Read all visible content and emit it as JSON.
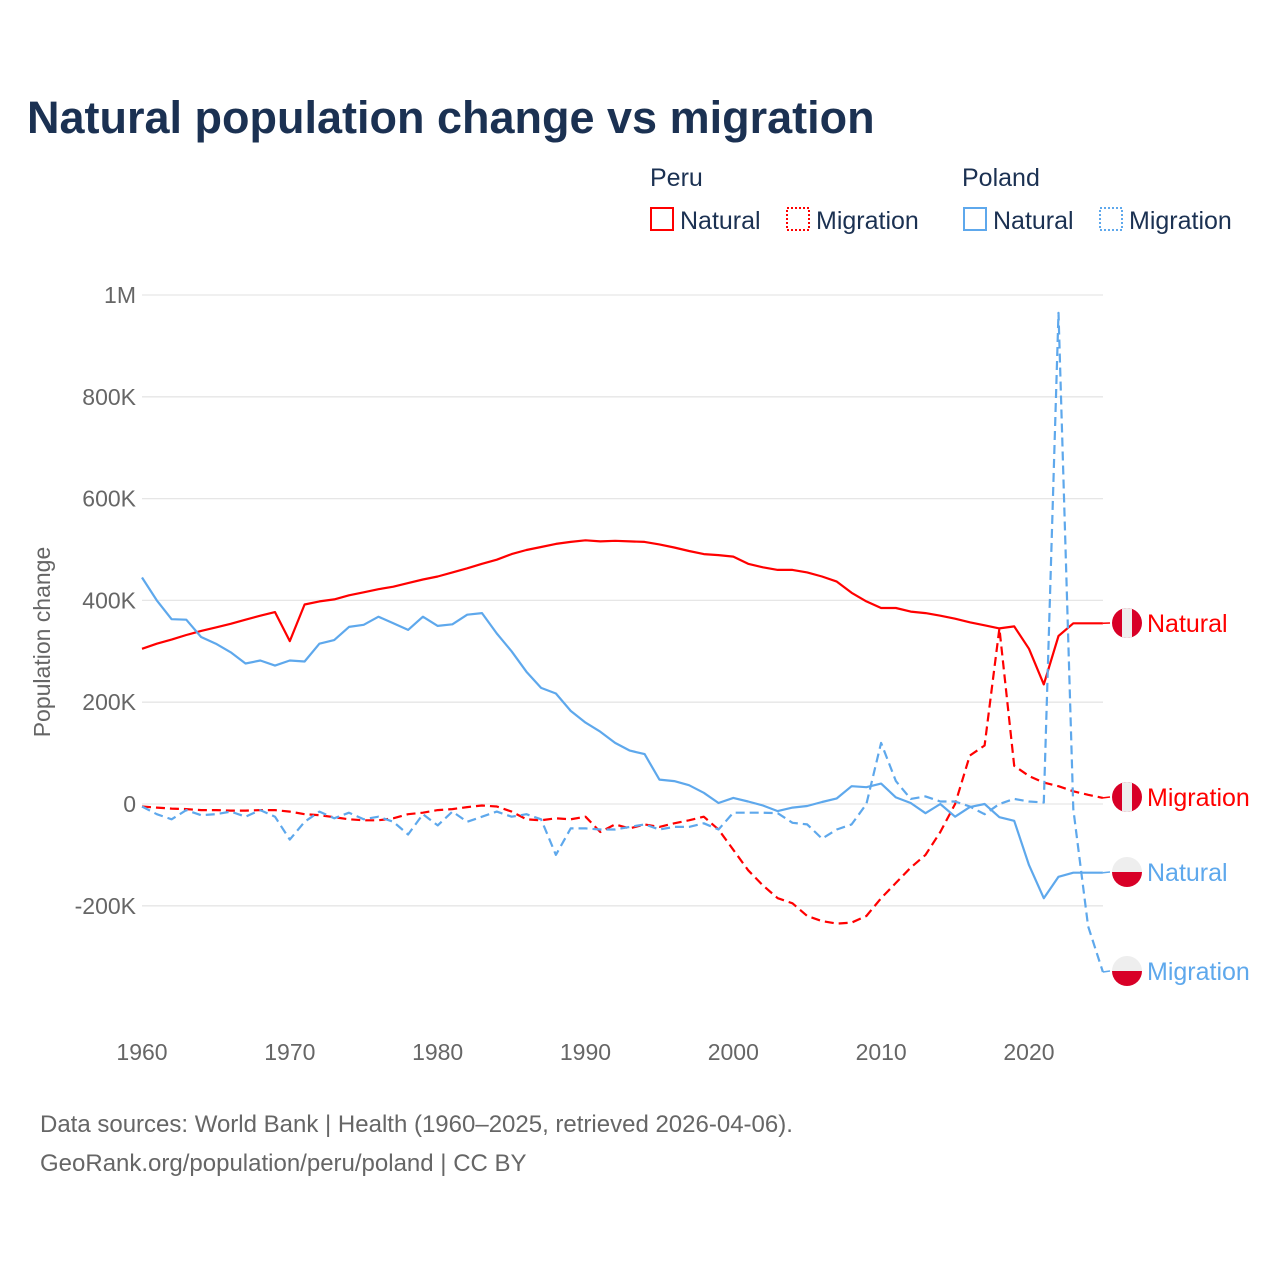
{
  "chart_data": {
    "type": "line",
    "title": "Natural population change vs migration",
    "xlabel": "",
    "ylabel": "Population change",
    "xlim": [
      1960,
      2025
    ],
    "ylim": [
      -380000,
      1000000
    ],
    "grid": true,
    "legend_placement": "top-right",
    "x_ticks": [
      1960,
      1970,
      1980,
      1990,
      2000,
      2010,
      2020
    ],
    "x_tick_labels": [
      "1960",
      "1970",
      "1980",
      "1990",
      "2000",
      "2010",
      "2020"
    ],
    "y_ticks": [
      1000000,
      800000,
      600000,
      400000,
      200000,
      0,
      -200000
    ],
    "y_tick_labels": [
      "1M",
      "800K",
      "600K",
      "400K",
      "200K",
      "0",
      "-200K"
    ],
    "x": [
      1960,
      1961,
      1962,
      1963,
      1964,
      1965,
      1966,
      1967,
      1968,
      1969,
      1970,
      1971,
      1972,
      1973,
      1974,
      1975,
      1976,
      1977,
      1978,
      1979,
      1980,
      1981,
      1982,
      1983,
      1984,
      1985,
      1986,
      1987,
      1988,
      1989,
      1990,
      1991,
      1992,
      1993,
      1994,
      1995,
      1996,
      1997,
      1998,
      1999,
      2000,
      2001,
      2002,
      2003,
      2004,
      2005,
      2006,
      2007,
      2008,
      2009,
      2010,
      2011,
      2012,
      2013,
      2014,
      2015,
      2016,
      2017,
      2018,
      2019,
      2020,
      2021,
      2022,
      2023,
      2024,
      2025
    ],
    "legend": [
      {
        "group": "Peru",
        "items": [
          "Natural",
          "Migration"
        ]
      },
      {
        "group": "Poland",
        "items": [
          "Natural",
          "Migration"
        ]
      }
    ],
    "series": [
      {
        "name": "Peru Natural",
        "country": "Peru",
        "kind": "Natural",
        "end_label": "Natural",
        "color": "#ff0000",
        "dash": false,
        "values": [
          305000,
          315000,
          323000,
          332000,
          340000,
          347000,
          354000,
          362000,
          370000,
          377000,
          320000,
          392000,
          398000,
          402000,
          410000,
          416000,
          422000,
          427000,
          434000,
          441000,
          447000,
          455000,
          463000,
          472000,
          480000,
          491000,
          499000,
          505000,
          511000,
          515000,
          518000,
          516000,
          517000,
          516000,
          515000,
          510000,
          504000,
          497000,
          491000,
          489000,
          486000,
          472000,
          465000,
          460000,
          460000,
          455000,
          447000,
          437000,
          415000,
          398000,
          385000,
          385000,
          378000,
          375000,
          370000,
          364000,
          357000,
          351000,
          345000,
          349000,
          305000,
          235000,
          330000,
          355000,
          355000,
          355000
        ]
      },
      {
        "name": "Peru Migration",
        "country": "Peru",
        "kind": "Migration",
        "end_label": "Migration",
        "color": "#ff0000",
        "dash": true,
        "values": [
          -5000,
          -7000,
          -9000,
          -10000,
          -12000,
          -12000,
          -13000,
          -13000,
          -12000,
          -12000,
          -15000,
          -20000,
          -22000,
          -26000,
          -30000,
          -32000,
          -32000,
          -28000,
          -20000,
          -17000,
          -12000,
          -10000,
          -6000,
          -3000,
          -5000,
          -15000,
          -30000,
          -32000,
          -28000,
          -30000,
          -25000,
          -55000,
          -40000,
          -48000,
          -40000,
          -45000,
          -38000,
          -32000,
          -25000,
          -50000,
          -90000,
          -130000,
          -160000,
          -185000,
          -195000,
          -220000,
          -230000,
          -235000,
          -233000,
          -220000,
          -185000,
          -155000,
          -125000,
          -100000,
          -55000,
          0,
          95000,
          115000,
          345000,
          75000,
          55000,
          42000,
          35000,
          25000,
          18000,
          12000
        ]
      },
      {
        "name": "Poland Natural",
        "country": "Poland",
        "kind": "Natural",
        "end_label": "Natural",
        "color": "#5ea8ec",
        "dash": false,
        "values": [
          445000,
          400000,
          363000,
          362000,
          328000,
          315000,
          298000,
          276000,
          282000,
          272000,
          282000,
          280000,
          315000,
          322000,
          348000,
          352000,
          368000,
          355000,
          342000,
          368000,
          350000,
          353000,
          372000,
          375000,
          335000,
          300000,
          260000,
          228000,
          217000,
          183000,
          160000,
          142000,
          120000,
          105000,
          98000,
          48000,
          45000,
          37000,
          22000,
          2000,
          12000,
          5000,
          -3000,
          -14000,
          -7000,
          -4000,
          4000,
          11000,
          35000,
          33000,
          40000,
          13000,
          2000,
          -18000,
          0,
          -25000,
          -6000,
          0,
          -26000,
          -33000,
          -120000,
          -185000,
          -143000,
          -135000,
          -135000,
          -135000
        ]
      },
      {
        "name": "Poland Migration",
        "country": "Poland",
        "kind": "Migration",
        "end_label": "Migration",
        "color": "#5ea8ec",
        "dash": true,
        "values": [
          -5000,
          -20000,
          -30000,
          -12000,
          -22000,
          -20000,
          -15000,
          -25000,
          -12000,
          -25000,
          -70000,
          -35000,
          -15000,
          -28000,
          -17000,
          -30000,
          -25000,
          -35000,
          -60000,
          -20000,
          -42000,
          -15000,
          -35000,
          -25000,
          -15000,
          -25000,
          -20000,
          -30000,
          -100000,
          -48000,
          -48000,
          -50000,
          -50000,
          -45000,
          -40000,
          -50000,
          -45000,
          -45000,
          -38000,
          -50000,
          -17000,
          -17000,
          -17000,
          -18000,
          -37000,
          -40000,
          -68000,
          -50000,
          -40000,
          0,
          120000,
          45000,
          10000,
          15000,
          5000,
          5000,
          -5000,
          -20000,
          0,
          10000,
          5000,
          3000,
          965000,
          -10000,
          -240000,
          -330000
        ]
      }
    ],
    "source_line1": "Data sources: World Bank | Health (1960–2025, retrieved 2026-04-06).",
    "source_line2": "GeoRank.org/population/peru/poland | CC BY"
  }
}
